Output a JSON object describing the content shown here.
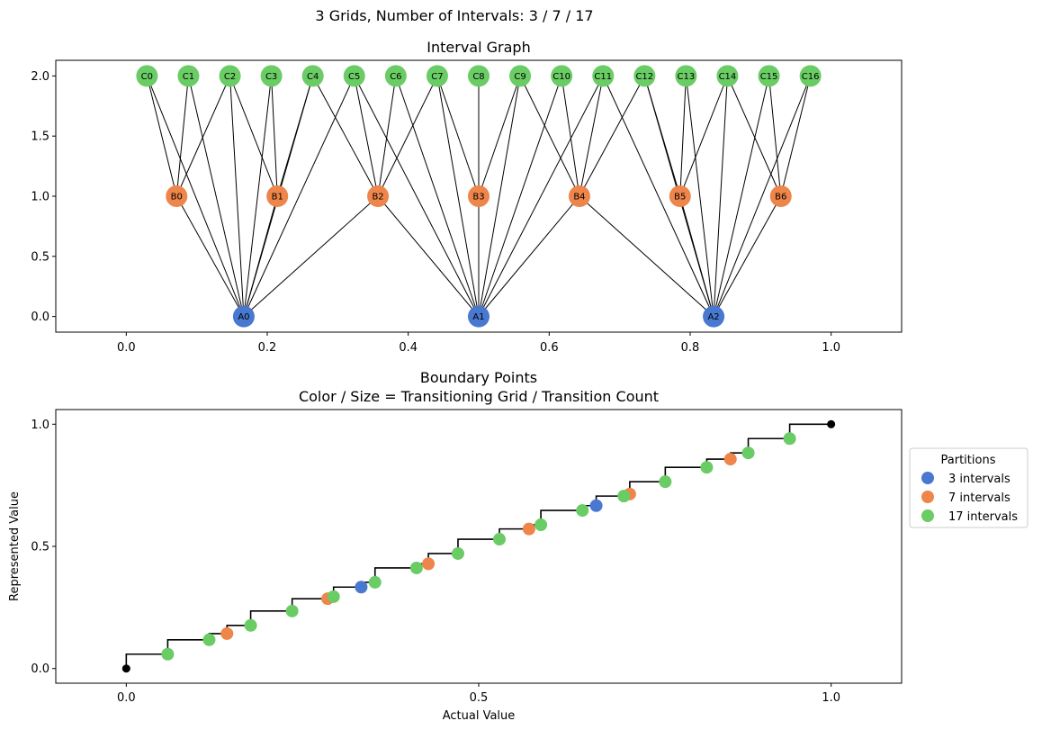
{
  "suptitle": "3 Grids, Number of Intervals: 3 / 7 / 17",
  "colors": {
    "grid3": "#4878d0",
    "grid7": "#ee854a",
    "grid17": "#6acc64",
    "edge": "#000000",
    "frame": "#000000"
  },
  "chart_data": [
    {
      "type": "network",
      "title": "Interval Graph",
      "xlim": [
        -0.1,
        1.1
      ],
      "ylim": [
        -0.13,
        2.13
      ],
      "x_ticks": [
        0.0,
        0.2,
        0.4,
        0.6,
        0.8,
        1.0
      ],
      "x_tick_labels": [
        "0.0",
        "0.2",
        "0.4",
        "0.6",
        "0.8",
        "1.0"
      ],
      "y_ticks": [
        0.0,
        0.5,
        1.0,
        1.5,
        2.0
      ],
      "y_tick_labels": [
        "0.0",
        "0.5",
        "1.0",
        "1.5",
        "2.0"
      ],
      "nodes": [
        {
          "id": "A0",
          "x": 0.1667,
          "y": 0,
          "grid": "grid3"
        },
        {
          "id": "A1",
          "x": 0.5,
          "y": 0,
          "grid": "grid3"
        },
        {
          "id": "A2",
          "x": 0.8333,
          "y": 0,
          "grid": "grid3"
        },
        {
          "id": "B0",
          "x": 0.0714,
          "y": 1,
          "grid": "grid7"
        },
        {
          "id": "B1",
          "x": 0.2143,
          "y": 1,
          "grid": "grid7"
        },
        {
          "id": "B2",
          "x": 0.3571,
          "y": 1,
          "grid": "grid7"
        },
        {
          "id": "B3",
          "x": 0.5,
          "y": 1,
          "grid": "grid7"
        },
        {
          "id": "B4",
          "x": 0.6429,
          "y": 1,
          "grid": "grid7"
        },
        {
          "id": "B5",
          "x": 0.7857,
          "y": 1,
          "grid": "grid7"
        },
        {
          "id": "B6",
          "x": 0.9286,
          "y": 1,
          "grid": "grid7"
        },
        {
          "id": "C0",
          "x": 0.0294,
          "y": 2,
          "grid": "grid17"
        },
        {
          "id": "C1",
          "x": 0.0882,
          "y": 2,
          "grid": "grid17"
        },
        {
          "id": "C2",
          "x": 0.1471,
          "y": 2,
          "grid": "grid17"
        },
        {
          "id": "C3",
          "x": 0.2059,
          "y": 2,
          "grid": "grid17"
        },
        {
          "id": "C4",
          "x": 0.2647,
          "y": 2,
          "grid": "grid17"
        },
        {
          "id": "C5",
          "x": 0.3235,
          "y": 2,
          "grid": "grid17"
        },
        {
          "id": "C6",
          "x": 0.3824,
          "y": 2,
          "grid": "grid17"
        },
        {
          "id": "C7",
          "x": 0.4412,
          "y": 2,
          "grid": "grid17"
        },
        {
          "id": "C8",
          "x": 0.5,
          "y": 2,
          "grid": "grid17"
        },
        {
          "id": "C9",
          "x": 0.5588,
          "y": 2,
          "grid": "grid17"
        },
        {
          "id": "C10",
          "x": 0.6176,
          "y": 2,
          "grid": "grid17"
        },
        {
          "id": "C11",
          "x": 0.6765,
          "y": 2,
          "grid": "grid17"
        },
        {
          "id": "C12",
          "x": 0.7353,
          "y": 2,
          "grid": "grid17"
        },
        {
          "id": "C13",
          "x": 0.7941,
          "y": 2,
          "grid": "grid17"
        },
        {
          "id": "C14",
          "x": 0.8529,
          "y": 2,
          "grid": "grid17"
        },
        {
          "id": "C15",
          "x": 0.9118,
          "y": 2,
          "grid": "grid17"
        },
        {
          "id": "C16",
          "x": 0.9706,
          "y": 2,
          "grid": "grid17"
        }
      ],
      "edges": [
        [
          "A0",
          "B0"
        ],
        [
          "A0",
          "B1"
        ],
        [
          "A0",
          "B2"
        ],
        [
          "A1",
          "B2"
        ],
        [
          "A1",
          "B3"
        ],
        [
          "A1",
          "B4"
        ],
        [
          "A2",
          "B4"
        ],
        [
          "A2",
          "B5"
        ],
        [
          "A2",
          "B6"
        ],
        [
          "A0",
          "C0"
        ],
        [
          "A0",
          "C1"
        ],
        [
          "A0",
          "C2"
        ],
        [
          "A0",
          "C3"
        ],
        [
          "A0",
          "C4"
        ],
        [
          "A0",
          "C5"
        ],
        [
          "A1",
          "C5"
        ],
        [
          "A1",
          "C6"
        ],
        [
          "A1",
          "C7"
        ],
        [
          "A1",
          "C8"
        ],
        [
          "A1",
          "C9"
        ],
        [
          "A1",
          "C10"
        ],
        [
          "A1",
          "C11"
        ],
        [
          "A2",
          "C11"
        ],
        [
          "A2",
          "C12"
        ],
        [
          "A2",
          "C13"
        ],
        [
          "A2",
          "C14"
        ],
        [
          "A2",
          "C15"
        ],
        [
          "A2",
          "C16"
        ],
        [
          "B0",
          "C0"
        ],
        [
          "B0",
          "C1"
        ],
        [
          "B0",
          "C2"
        ],
        [
          "B1",
          "C3"
        ],
        [
          "B1",
          "C4"
        ],
        [
          "B1",
          "C2"
        ],
        [
          "B2",
          "C5"
        ],
        [
          "B2",
          "C6"
        ],
        [
          "B2",
          "C7"
        ],
        [
          "B2",
          "C4"
        ],
        [
          "B3",
          "C7"
        ],
        [
          "B3",
          "C8"
        ],
        [
          "B3",
          "C9"
        ],
        [
          "B4",
          "C9"
        ],
        [
          "B4",
          "C10"
        ],
        [
          "B4",
          "C11"
        ],
        [
          "B4",
          "C12"
        ],
        [
          "B5",
          "C12"
        ],
        [
          "B5",
          "C13"
        ],
        [
          "B5",
          "C14"
        ],
        [
          "B6",
          "C14"
        ],
        [
          "B6",
          "C15"
        ],
        [
          "B6",
          "C16"
        ]
      ]
    },
    {
      "type": "scatter",
      "title_lines": [
        "Boundary Points",
        "Color / Size = Transitioning Grid / Transition Count"
      ],
      "xlabel": "Actual Value",
      "ylabel": "Represented Value",
      "xlim": [
        -0.1,
        1.1
      ],
      "ylim": [
        -0.06,
        1.06
      ],
      "x_ticks": [
        0.0,
        0.5,
        1.0
      ],
      "x_tick_labels": [
        "0.0",
        "0.5",
        "1.0"
      ],
      "y_ticks": [
        0.0,
        0.5,
        1.0
      ],
      "y_tick_labels": [
        "0.0",
        "0.5",
        "1.0"
      ],
      "step_x": [
        0.0,
        0.0588,
        0.1176,
        0.1429,
        0.1765,
        0.2353,
        0.2857,
        0.2941,
        0.3333,
        0.3529,
        0.4118,
        0.4286,
        0.4706,
        0.5294,
        0.5714,
        0.5882,
        0.6471,
        0.6667,
        0.7059,
        0.7143,
        0.7647,
        0.8235,
        0.8571,
        0.8824,
        0.9412,
        1.0
      ],
      "step_y": [
        0.0,
        0.0588,
        0.1176,
        0.1429,
        0.1765,
        0.2353,
        0.2857,
        0.2941,
        0.3333,
        0.3529,
        0.4118,
        0.4286,
        0.4706,
        0.5294,
        0.5714,
        0.5882,
        0.6471,
        0.6667,
        0.7059,
        0.7143,
        0.7647,
        0.8235,
        0.8571,
        0.8824,
        0.9412,
        1.0
      ],
      "endpoints": [
        {
          "x": 0.0,
          "y": 0.0
        },
        {
          "x": 1.0,
          "y": 1.0
        }
      ],
      "series": [
        {
          "name": "3 intervals",
          "color_key": "grid3",
          "x": [
            0.3333,
            0.6667
          ],
          "y": [
            0.3333,
            0.6667
          ]
        },
        {
          "name": "7 intervals",
          "color_key": "grid7",
          "x": [
            0.1429,
            0.2857,
            0.4286,
            0.5714,
            0.7143,
            0.8571
          ],
          "y": [
            0.1429,
            0.2857,
            0.4286,
            0.5714,
            0.7143,
            0.8571
          ]
        },
        {
          "name": "17 intervals",
          "color_key": "grid17",
          "x": [
            0.0588,
            0.1176,
            0.1765,
            0.2353,
            0.2941,
            0.3529,
            0.4118,
            0.4706,
            0.5294,
            0.5882,
            0.6471,
            0.7059,
            0.7647,
            0.8235,
            0.8824,
            0.9412
          ],
          "y": [
            0.0588,
            0.1176,
            0.1765,
            0.2353,
            0.2941,
            0.3529,
            0.4118,
            0.4706,
            0.5294,
            0.5882,
            0.6471,
            0.7059,
            0.7647,
            0.8235,
            0.8824,
            0.9412
          ]
        }
      ],
      "legend": {
        "title": "Partitions",
        "placement": "outside-right-center"
      }
    }
  ]
}
